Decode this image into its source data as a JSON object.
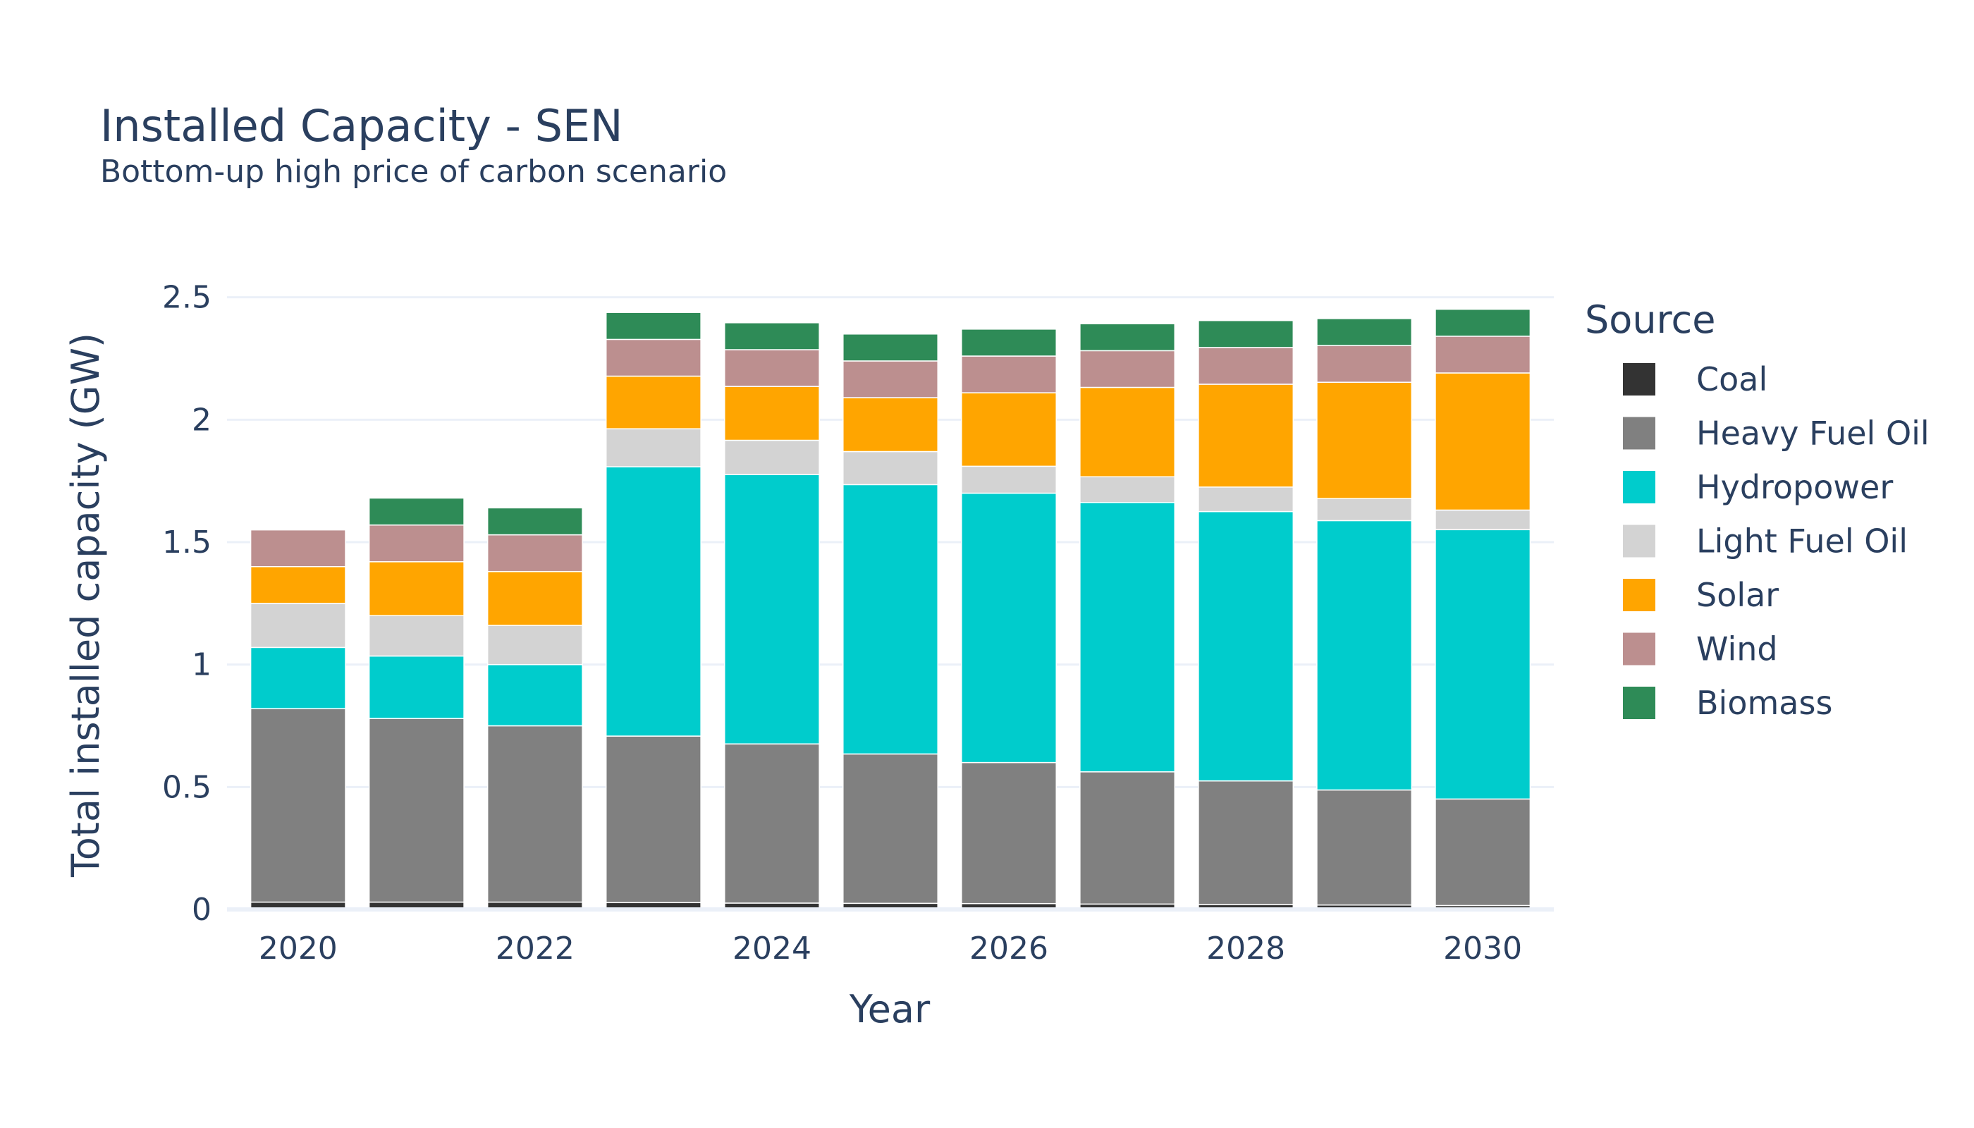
{
  "chart_data": {
    "type": "bar",
    "stacked": true,
    "title": "Installed Capacity - SEN",
    "subtitle": "Bottom-up high price of carbon scenario",
    "xlabel": "Year",
    "ylabel": "Total installed capacity (GW)",
    "legend_title": "Source",
    "legend_position": "right",
    "grid": true,
    "ylim": [
      0,
      2.62
    ],
    "x": [
      2020,
      2021,
      2022,
      2023,
      2024,
      2025,
      2026,
      2027,
      2028,
      2029,
      2030
    ],
    "x_ticks": [
      "2020",
      "2022",
      "2024",
      "2026",
      "2028",
      "2030"
    ],
    "x_tick_values": [
      2020,
      2022,
      2024,
      2026,
      2028,
      2030
    ],
    "y_ticks": [
      "0",
      "0.5",
      "1",
      "1.5",
      "2",
      "2.5"
    ],
    "y_tick_values": [
      0,
      0.5,
      1,
      1.5,
      2,
      2.5
    ],
    "series": [
      {
        "name": "Coal",
        "color": "#333333",
        "values": [
          0.03,
          0.03,
          0.03,
          0.028,
          0.026,
          0.025,
          0.024,
          0.022,
          0.02,
          0.018,
          0.016
        ]
      },
      {
        "name": "Heavy Fuel Oil",
        "color": "#808080",
        "values": [
          0.79,
          0.75,
          0.72,
          0.68,
          0.65,
          0.61,
          0.576,
          0.54,
          0.505,
          0.47,
          0.435
        ]
      },
      {
        "name": "Hydropower",
        "color": "#00cccc",
        "values": [
          0.25,
          0.255,
          0.25,
          1.1,
          1.1,
          1.1,
          1.1,
          1.1,
          1.1,
          1.1,
          1.1
        ]
      },
      {
        "name": "Light Fuel Oil",
        "color": "#d3d3d3",
        "values": [
          0.18,
          0.165,
          0.16,
          0.155,
          0.14,
          0.135,
          0.11,
          0.105,
          0.1,
          0.09,
          0.08
        ]
      },
      {
        "name": "Solar",
        "color": "#ffa500",
        "values": [
          0.15,
          0.22,
          0.22,
          0.215,
          0.22,
          0.22,
          0.3,
          0.365,
          0.42,
          0.475,
          0.56
        ]
      },
      {
        "name": "Wind",
        "color": "#bc8f8f",
        "values": [
          0.15,
          0.15,
          0.15,
          0.15,
          0.15,
          0.15,
          0.15,
          0.15,
          0.15,
          0.15,
          0.15
        ]
      },
      {
        "name": "Biomass",
        "color": "#2e8b57",
        "values": [
          0.0,
          0.11,
          0.11,
          0.11,
          0.11,
          0.11,
          0.11,
          0.11,
          0.11,
          0.11,
          0.11
        ]
      }
    ]
  }
}
